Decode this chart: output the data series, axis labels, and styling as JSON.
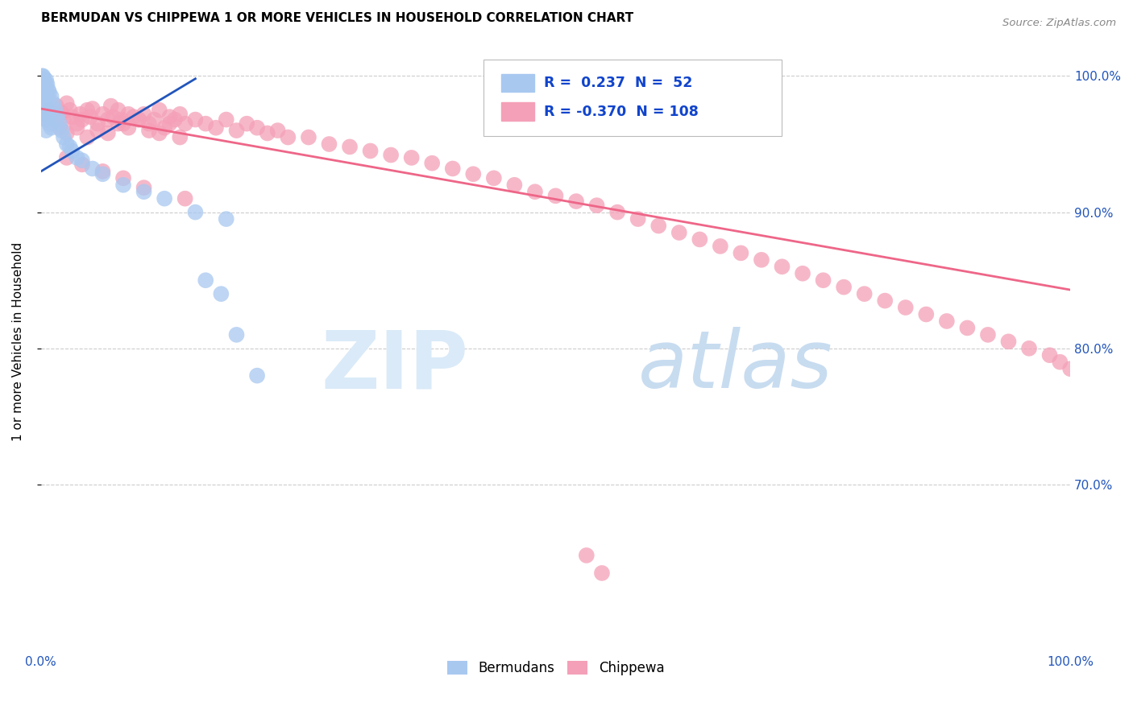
{
  "title": "BERMUDAN VS CHIPPEWA 1 OR MORE VEHICLES IN HOUSEHOLD CORRELATION CHART",
  "source": "Source: ZipAtlas.com",
  "ylabel": "1 or more Vehicles in Household",
  "legend_blue_r": "0.237",
  "legend_blue_n": "52",
  "legend_pink_r": "-0.370",
  "legend_pink_n": "108",
  "blue_color": "#A8C8F0",
  "pink_color": "#F4A0B8",
  "blue_line_color": "#2255BB",
  "pink_line_color": "#EE6688",
  "xlim": [
    0.0,
    1.0
  ],
  "ylim": [
    0.58,
    1.03
  ],
  "blue_x": [
    0.001,
    0.001,
    0.001,
    0.001,
    0.001,
    0.002,
    0.002,
    0.002,
    0.002,
    0.003,
    0.003,
    0.003,
    0.003,
    0.004,
    0.004,
    0.004,
    0.005,
    0.005,
    0.005,
    0.005,
    0.005,
    0.006,
    0.006,
    0.006,
    0.007,
    0.007,
    0.008,
    0.008,
    0.01,
    0.01,
    0.012,
    0.014,
    0.016,
    0.018,
    0.02,
    0.022,
    0.025,
    0.028,
    0.03,
    0.035,
    0.04,
    0.05,
    0.06,
    0.08,
    0.1,
    0.12,
    0.15,
    0.18,
    0.16,
    0.175,
    0.19,
    0.21
  ],
  "blue_y": [
    1.0,
    0.995,
    0.99,
    0.985,
    0.98,
    1.0,
    0.995,
    0.985,
    0.975,
    0.998,
    0.992,
    0.986,
    0.97,
    0.995,
    0.988,
    0.972,
    0.997,
    0.993,
    0.986,
    0.975,
    0.96,
    0.994,
    0.985,
    0.968,
    0.99,
    0.972,
    0.988,
    0.965,
    0.985,
    0.962,
    0.98,
    0.975,
    0.97,
    0.965,
    0.96,
    0.955,
    0.95,
    0.948,
    0.945,
    0.94,
    0.938,
    0.932,
    0.928,
    0.92,
    0.915,
    0.91,
    0.9,
    0.895,
    0.85,
    0.84,
    0.81,
    0.78
  ],
  "pink_x": [
    0.002,
    0.005,
    0.008,
    0.01,
    0.012,
    0.015,
    0.018,
    0.02,
    0.022,
    0.025,
    0.028,
    0.03,
    0.035,
    0.038,
    0.04,
    0.045,
    0.048,
    0.05,
    0.055,
    0.06,
    0.065,
    0.068,
    0.07,
    0.075,
    0.078,
    0.08,
    0.085,
    0.09,
    0.095,
    0.1,
    0.105,
    0.11,
    0.115,
    0.12,
    0.125,
    0.13,
    0.135,
    0.14,
    0.15,
    0.16,
    0.17,
    0.18,
    0.19,
    0.2,
    0.21,
    0.22,
    0.23,
    0.24,
    0.26,
    0.28,
    0.3,
    0.32,
    0.34,
    0.36,
    0.38,
    0.4,
    0.42,
    0.44,
    0.46,
    0.48,
    0.5,
    0.52,
    0.54,
    0.56,
    0.58,
    0.6,
    0.62,
    0.64,
    0.66,
    0.68,
    0.7,
    0.72,
    0.74,
    0.76,
    0.78,
    0.8,
    0.82,
    0.84,
    0.86,
    0.88,
    0.9,
    0.92,
    0.94,
    0.96,
    0.98,
    0.99,
    1.0,
    0.025,
    0.035,
    0.045,
    0.055,
    0.065,
    0.075,
    0.085,
    0.095,
    0.105,
    0.115,
    0.125,
    0.135,
    0.025,
    0.04,
    0.06,
    0.08,
    0.1,
    0.14,
    0.53,
    0.545
  ],
  "pink_y": [
    0.972,
    0.968,
    0.975,
    0.965,
    0.97,
    0.978,
    0.962,
    0.973,
    0.968,
    0.98,
    0.975,
    0.97,
    0.965,
    0.972,
    0.968,
    0.975,
    0.97,
    0.976,
    0.965,
    0.972,
    0.968,
    0.978,
    0.97,
    0.975,
    0.968,
    0.965,
    0.972,
    0.97,
    0.968,
    0.972,
    0.965,
    0.968,
    0.975,
    0.962,
    0.97,
    0.968,
    0.972,
    0.965,
    0.968,
    0.965,
    0.962,
    0.968,
    0.96,
    0.965,
    0.962,
    0.958,
    0.96,
    0.955,
    0.955,
    0.95,
    0.948,
    0.945,
    0.942,
    0.94,
    0.936,
    0.932,
    0.928,
    0.925,
    0.92,
    0.915,
    0.912,
    0.908,
    0.905,
    0.9,
    0.895,
    0.89,
    0.885,
    0.88,
    0.875,
    0.87,
    0.865,
    0.86,
    0.855,
    0.85,
    0.845,
    0.84,
    0.835,
    0.83,
    0.825,
    0.82,
    0.815,
    0.81,
    0.805,
    0.8,
    0.795,
    0.79,
    0.785,
    0.958,
    0.962,
    0.955,
    0.96,
    0.958,
    0.965,
    0.962,
    0.968,
    0.96,
    0.958,
    0.965,
    0.955,
    0.94,
    0.935,
    0.93,
    0.925,
    0.918,
    0.91,
    0.648,
    0.635
  ],
  "blue_line_x": [
    0.0,
    0.15
  ],
  "blue_line_y": [
    0.93,
    0.998
  ],
  "pink_line_x": [
    0.0,
    1.0
  ],
  "pink_line_y": [
    0.976,
    0.843
  ]
}
